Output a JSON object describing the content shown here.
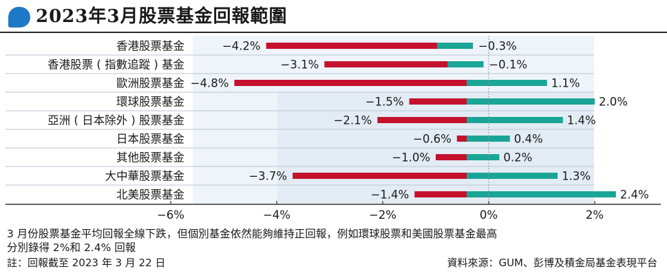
{
  "header": {
    "title": "2023年3月股票基金回報範圍"
  },
  "chart_data": {
    "type": "bar",
    "categories": [
      "香港股票基金",
      "香港股票（指數追蹤）基金",
      "歐洲股票基金",
      "環球股票基金",
      "亞洲（日本除外）股票基金",
      "日本股票基金",
      "其他股票基金",
      "大中華股票基金",
      "北美股票基金"
    ],
    "categories_display": [
      "香港股票基金",
      "香港股票 ( 指數追蹤 ) 基金",
      "歐洲股票基金",
      "環球股票基金",
      "亞洲 ( 日本除外 ) 股票基金",
      "日本股票基金",
      "其他股票基金",
      "大中華股票基金",
      "北美股票基金"
    ],
    "series": [
      {
        "name": "",
        "color": "#c4122e",
        "values": [
          -4.2,
          -3.1,
          -4.8,
          -1.5,
          -2.1,
          -0.6,
          -1.0,
          -3.7,
          -1.4
        ]
      },
      {
        "name": "",
        "color": "#1aa596",
        "values": [
          -0.3,
          -0.1,
          1.1,
          2.0,
          1.4,
          0.4,
          0.2,
          1.3,
          2.4
        ]
      }
    ],
    "min_labels": [
      "−4.2%",
      "−3.1%",
      "−4.8%",
      "−1.5%",
      "−2.1%",
      "−0.6%",
      "−1.0%",
      "−3.7%",
      "−1.4%"
    ],
    "max_labels": [
      "−0.3%",
      "−0.1%",
      "1.1%",
      "2.0%",
      "1.4%",
      "0.4%",
      "0.2%",
      "1.3%",
      "2.4%"
    ],
    "x_ticks": [
      -6,
      -4,
      -2,
      0,
      2
    ],
    "x_tick_labels": [
      "−6%",
      "−4%",
      "−2%",
      "0%",
      "2%"
    ],
    "xlim": [
      -6,
      3
    ],
    "grid": false
  },
  "notes": {
    "line1": "3 月份股票基金平均回報全線下跌，但個別基金依然能夠維持正回報，例如環球股票和美國股票基金最高",
    "line2": "分別錄得 2%和 2.4% 回報",
    "footnote": "註：回報截至 2023 年 3 月 22 日",
    "source": "資料來源：GUM、彭博及積金局基金表現平台"
  }
}
